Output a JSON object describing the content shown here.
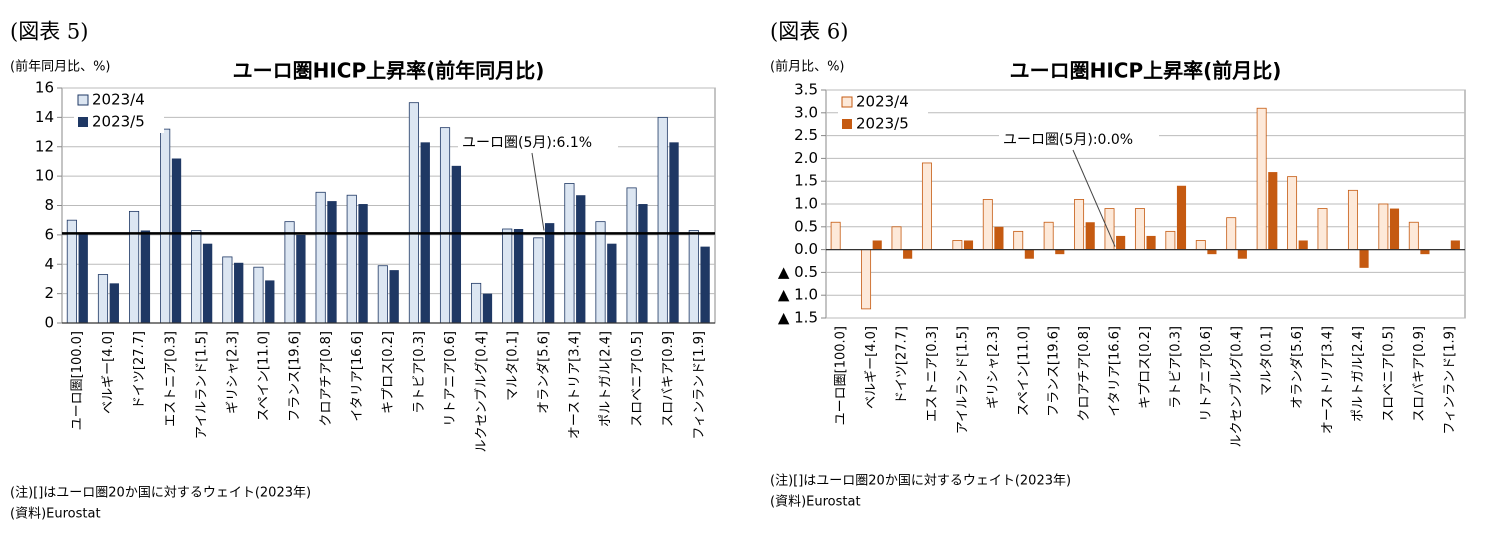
{
  "chart_data": [
    {
      "type": "bar",
      "figure_label": "(図表 5)",
      "title": "ユーロ圏HICP上昇率(前年同月比)",
      "y_axis_label": "(前年同月比、%)",
      "categories": [
        "ユーロ圏[100.0]",
        "ベルギー[4.0]",
        "ドイツ[27.7]",
        "エストニア[0.3]",
        "アイルランド[1.5]",
        "ギリシャ[2.3]",
        "スペイン[11.0]",
        "フランス[19.6]",
        "クロアチア[0.8]",
        "イタリア[16.6]",
        "キプロス[0.2]",
        "ラトビア[0.3]",
        "リトアニア[0.6]",
        "ルクセンブルグ[0.4]",
        "マルタ[0.1]",
        "オランダ[5.6]",
        "オーストリア[3.4]",
        "ポルトガル[2.4]",
        "スロベニア[0.5]",
        "スロバキア[0.9]",
        "フィンランド[1.9]"
      ],
      "series": [
        {
          "name": "2023/4",
          "color": "#dce6f2",
          "values": [
            7.0,
            3.3,
            7.6,
            13.2,
            6.3,
            4.5,
            3.8,
            6.9,
            8.9,
            8.7,
            3.9,
            15.0,
            13.3,
            2.7,
            6.4,
            5.8,
            9.5,
            6.9,
            9.2,
            14.0,
            6.3
          ]
        },
        {
          "name": "2023/5",
          "color": "#1f3864",
          "values": [
            6.1,
            2.7,
            6.3,
            11.2,
            5.4,
            4.1,
            2.9,
            6.0,
            8.3,
            8.1,
            3.6,
            12.3,
            10.7,
            2.0,
            6.4,
            6.8,
            8.7,
            5.4,
            8.1,
            12.3,
            5.2
          ]
        }
      ],
      "edge_color": "#1f3864",
      "ylim": [
        0,
        16
      ],
      "yticks": [
        0,
        2,
        4,
        6,
        8,
        10,
        12,
        14,
        16
      ],
      "reference_line": 6.1,
      "annotation": "ユーロ圏(5月):6.1%",
      "note": "(注)[]はユーロ圏20か国に対するウェイト(2023年)",
      "source": "(資料)Eurostat",
      "legend": "upper left"
    },
    {
      "type": "bar",
      "figure_label": "(図表 6)",
      "title": "ユーロ圏HICP上昇率(前月比)",
      "y_axis_label": "(前月比、%)",
      "categories": [
        "ユーロ圏[100.0]",
        "ベルギー[4.0]",
        "ドイツ[27.7]",
        "エストニア[0.3]",
        "アイルランド[1.5]",
        "ギリシャ[2.3]",
        "スペイン[11.0]",
        "フランス[19.6]",
        "クロアチア[0.8]",
        "イタリア[16.6]",
        "キプロス[0.2]",
        "ラトビア[0.3]",
        "リトアニア[0.6]",
        "ルクセンブルグ[0.4]",
        "マルタ[0.1]",
        "オランダ[5.6]",
        "オーストリア[3.4]",
        "ポルトガル[2.4]",
        "スロベニア[0.5]",
        "スロバキア[0.9]",
        "フィンランド[1.9]"
      ],
      "series": [
        {
          "name": "2023/4",
          "color": "#fde9d9",
          "values": [
            0.6,
            -1.3,
            0.5,
            1.9,
            0.2,
            1.1,
            0.4,
            0.6,
            1.1,
            0.9,
            0.9,
            0.4,
            0.2,
            0.7,
            3.1,
            1.6,
            0.9,
            1.3,
            1.0,
            0.6,
            0.0
          ]
        },
        {
          "name": "2023/5",
          "color": "#c55a11",
          "values": [
            0.0,
            0.2,
            -0.2,
            0.0,
            0.2,
            0.5,
            -0.2,
            -0.1,
            0.6,
            0.3,
            0.3,
            1.4,
            -0.1,
            -0.2,
            1.7,
            0.2,
            0.0,
            -0.4,
            0.9,
            -0.1,
            0.2
          ]
        }
      ],
      "edge_color": "#c55a11",
      "ylim": [
        -1.5,
        3.5
      ],
      "yticks": [
        {
          "value": -1.5,
          "label": "▲ 1.5"
        },
        {
          "value": -1,
          "label": "▲ 1.0"
        },
        {
          "value": -0.5,
          "label": "▲ 0.5"
        },
        {
          "value": 0,
          "label": "0.0"
        },
        0.5,
        {
          "value": 1,
          "label": "1.0"
        },
        1.5,
        {
          "value": 2,
          "label": "2.0"
        },
        2.5,
        {
          "value": 3,
          "label": "3.0"
        },
        3.5
      ],
      "annotation": "ユーロ圏(5月):0.0%",
      "note": "(注)[]はユーロ圏20か国に対するウェイト(2023年)",
      "source": "(資料)Eurostat",
      "legend": "upper left"
    }
  ]
}
